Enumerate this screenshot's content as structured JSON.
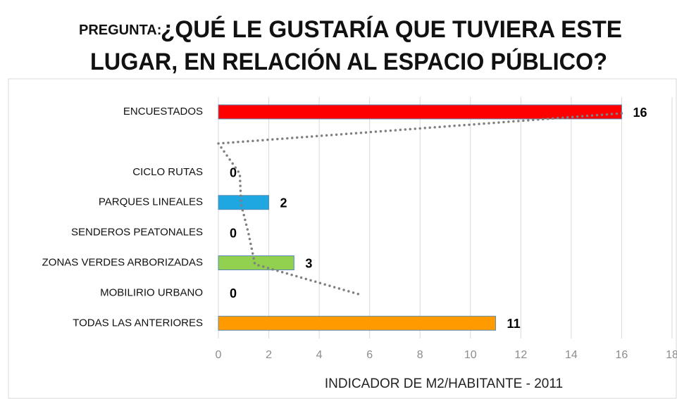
{
  "chart_data": {
    "type": "hbar",
    "title_prefix": "PREGUNTA:",
    "title_lines": [
      "¿QUÉ  LE GUSTARÍA QUE TUVIERA ESTE",
      "LUGAR, EN RELACIÓN AL ESPACIO PÚBLICO?"
    ],
    "x_label": "INDICADOR DE M2/HABITANTE - 2011",
    "categories": [
      "ENCUESTADOS",
      null,
      "CICLO RUTAS",
      "PARQUES LINEALES",
      "SENDEROS PEATONALES",
      "ZONAS VERDES ARBORIZADAS",
      "MOBILIRIO URBANO",
      "TODAS LAS ANTERIORES"
    ],
    "values": [
      16,
      null,
      0,
      2,
      0,
      3,
      0,
      11
    ],
    "colors": [
      "#ff0000",
      null,
      null,
      "#1ea7e1",
      null,
      "#92d050",
      null,
      "#ff9a00"
    ],
    "trend": {
      "color": "#808080",
      "values": [
        16,
        0,
        0.85,
        0.9,
        1.2,
        1.45,
        5.6,
        null
      ]
    },
    "xlim": [
      0,
      18
    ],
    "xticks": [
      0,
      2,
      4,
      6,
      8,
      10,
      12,
      14,
      16,
      18
    ],
    "grid": true
  }
}
